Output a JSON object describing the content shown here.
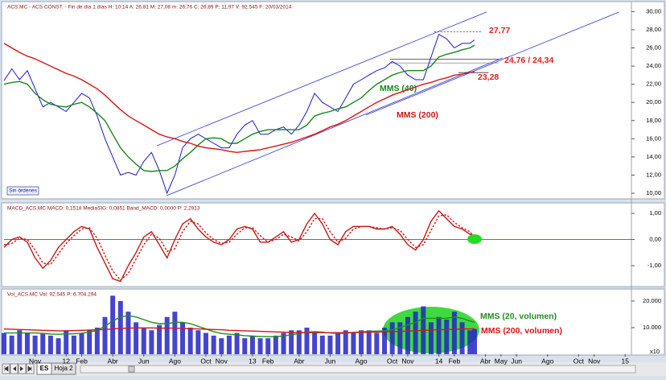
{
  "chart_data": [
    {
      "type": "line",
      "title": "ACS.MC - ACS CONST. - Fin de día 1 días H: 10:14 A: 26,81 M: 27,08 m: 26,76 C: 26,89 P: 11,97 V: 92.545 F: 20/03/2014",
      "badge": "Sin órdenes",
      "xlim": [
        -2,
        38.4
      ],
      "ylim": [
        9.56,
        30.83
      ],
      "yticks": [
        {
          "value": 10,
          "label": "10,00"
        },
        {
          "value": 12,
          "label": "12,00"
        },
        {
          "value": 14,
          "label": "14,00"
        },
        {
          "value": 16,
          "label": "16,00"
        },
        {
          "value": 18,
          "label": "18,00"
        },
        {
          "value": 20,
          "label": "20,00"
        },
        {
          "value": 22,
          "label": "22,00"
        },
        {
          "value": 24,
          "label": "24,00"
        },
        {
          "value": 26,
          "label": "26,00"
        },
        {
          "value": 28,
          "label": "28,00"
        },
        {
          "value": 30,
          "label": "30,00"
        }
      ],
      "x": [
        -2,
        -1.5,
        -1,
        -0.5,
        0,
        0.5,
        1,
        1.5,
        2,
        2.5,
        3,
        3.5,
        4,
        4.5,
        5,
        5.5,
        6,
        6.5,
        7,
        7.5,
        8,
        8.5,
        9,
        9.5,
        10,
        10.5,
        11,
        11.5,
        12,
        12.5,
        13,
        13.5,
        14,
        14.5,
        15,
        15.5,
        16,
        16.5,
        17,
        17.5,
        18,
        18.5,
        19,
        19.5,
        20,
        20.5,
        21,
        21.5,
        22,
        22.5,
        23,
        23.5,
        24,
        24.5,
        25,
        25.5,
        26,
        26.5,
        27,
        27.5,
        28,
        28.3
      ],
      "series": [
        {
          "color": "#1a1ac8",
          "values": [
            22.4,
            23.7,
            22.5,
            23.5,
            21.5,
            19.5,
            20,
            19.5,
            19,
            20,
            21,
            20.5,
            18.5,
            16,
            14,
            12,
            12.3,
            12,
            13.5,
            14.5,
            12.5,
            10,
            12,
            15,
            16,
            16.5,
            16,
            15.5,
            15,
            15,
            16.5,
            17.5,
            18,
            16.5,
            16.5,
            17,
            17.3,
            16.5,
            17.5,
            19,
            21,
            20,
            19.5,
            19,
            20.5,
            22,
            22.5,
            23,
            23.5,
            23.8,
            24.5,
            24,
            23,
            22.5,
            22.5,
            25,
            27.5,
            27,
            26,
            26.5,
            26.5,
            26.89
          ]
        },
        {
          "name": "MMS (40)",
          "color": "#17861a",
          "values": [
            22,
            22.2,
            22.3,
            22,
            21,
            20.3,
            19.8,
            19.6,
            19.5,
            19.8,
            20,
            19.5,
            18.8,
            18,
            16.5,
            15,
            14,
            13.2,
            12.5,
            12.4,
            12.5,
            12.5,
            13,
            13.8,
            14.5,
            15.3,
            16,
            16.1,
            16,
            15.5,
            15.5,
            16,
            16.5,
            16.8,
            17,
            17,
            17,
            17,
            17,
            17.5,
            18.5,
            18.8,
            19,
            19.3,
            19.5,
            20,
            20.5,
            21.3,
            22,
            22.5,
            23,
            23.3,
            23.5,
            23.5,
            23.5,
            24,
            25,
            25.3,
            25.5,
            25.8,
            26,
            26.3
          ]
        },
        {
          "name": "MMS (200)",
          "color": "#d81414",
          "values": [
            26.5,
            26,
            25.5,
            25.1,
            24.8,
            24.4,
            24,
            23.6,
            23.2,
            22.9,
            22.5,
            22,
            21.5,
            20.8,
            20,
            19.2,
            18.5,
            18,
            17.5,
            17,
            16.5,
            16.2,
            16,
            15.7,
            15.5,
            15.2,
            15,
            14.9,
            14.8,
            14.6,
            14.5,
            14.6,
            14.7,
            14.8,
            15,
            15.2,
            15.4,
            15.6,
            15.9,
            16.2,
            16.5,
            16.9,
            17.3,
            17.6,
            18,
            18.5,
            19,
            19.5,
            20,
            20.4,
            20.8,
            21.1,
            21.4,
            21.7,
            22,
            22.2,
            22.5,
            22.7,
            23,
            23.1,
            23.3,
            23.4
          ]
        }
      ],
      "trendlines": [
        {
          "x": [
            7.84,
            29.07
          ],
          "y": [
            15.23,
            29.95
          ]
        },
        {
          "x": [
            8.46,
            30.1
          ],
          "y": [
            9.73,
            24.9
          ]
        },
        {
          "x": [
            21.3,
            37.6
          ],
          "y": [
            18.6,
            29.95
          ]
        }
      ],
      "levels": [
        {
          "label": "27,77",
          "values": [
            27.77
          ],
          "x": [
            25.7,
            28.8
          ]
        },
        {
          "label": "24,76 / 24,34",
          "values": [
            24.76,
            24.34
          ],
          "x": [
            22.86,
            29.85
          ]
        },
        {
          "label": "23,28",
          "values": [
            23.28
          ],
          "x": [
            27.26,
            29.2
          ]
        }
      ]
    },
    {
      "type": "line",
      "title": "MACD_ACS.MC MACD: 0,1518 MediaSIG: 0,0851 Band_MACD: 0,0000 P: 2,2913",
      "xlim": [
        -2,
        38.4
      ],
      "ylim": [
        -1.77,
        1.31
      ],
      "baseline": 0,
      "yticks": [
        {
          "value": 1,
          "label": "1,00"
        },
        {
          "value": 0,
          "label": "0,00"
        },
        {
          "value": -1,
          "label": "-1,00"
        }
      ],
      "x": [
        -2,
        -1.5,
        -1,
        -0.5,
        0,
        0.5,
        1,
        1.5,
        2,
        2.5,
        3,
        3.5,
        4,
        4.5,
        5,
        5.5,
        6,
        6.5,
        7,
        7.5,
        8,
        8.5,
        9,
        9.5,
        10,
        10.5,
        11,
        11.5,
        12,
        12.5,
        13,
        13.5,
        14,
        14.5,
        15,
        15.5,
        16,
        16.5,
        17,
        17.5,
        18,
        18.5,
        19,
        19.5,
        20,
        20.5,
        21,
        21.5,
        22,
        22.5,
        23,
        23.5,
        24,
        24.5,
        25,
        25.5,
        26,
        26.5,
        27,
        27.5,
        28,
        28.3
      ],
      "series": [
        {
          "color": "#c81818",
          "values": [
            -0.3,
            0.0,
            0.1,
            -0.1,
            -0.7,
            -1.1,
            -0.8,
            -0.3,
            0.0,
            0.3,
            0.5,
            0.4,
            -0.3,
            -0.9,
            -1.5,
            -1.6,
            -1.0,
            -0.5,
            0.1,
            0.3,
            -0.2,
            -0.7,
            0.0,
            0.6,
            0.8,
            0.4,
            0.1,
            -0.1,
            -0.2,
            0.0,
            0.4,
            0.5,
            0.4,
            -0.1,
            -0.1,
            0.1,
            0.3,
            -0.1,
            0.0,
            0.6,
            1.0,
            0.6,
            0.0,
            -0.2,
            0.3,
            0.5,
            0.5,
            0.5,
            0.4,
            0.4,
            0.5,
            0.2,
            -0.2,
            -0.4,
            0.0,
            0.7,
            1.1,
            0.8,
            0.5,
            0.4,
            0.2,
            0.15
          ]
        },
        {
          "color": "#c81818",
          "dash": true,
          "values": [
            -0.2,
            -0.15,
            0.05,
            0.0,
            -0.4,
            -0.9,
            -0.95,
            -0.55,
            -0.15,
            0.15,
            0.4,
            0.45,
            0.05,
            -0.6,
            -1.2,
            -1.55,
            -1.3,
            -0.75,
            -0.2,
            0.2,
            0.05,
            -0.45,
            -0.35,
            0.3,
            0.7,
            0.6,
            0.25,
            0.0,
            -0.15,
            -0.1,
            0.2,
            0.45,
            0.45,
            0.15,
            -0.1,
            0.0,
            0.2,
            0.1,
            -0.05,
            0.3,
            0.8,
            0.8,
            0.3,
            -0.1,
            0.05,
            0.4,
            0.5,
            0.5,
            0.45,
            0.4,
            0.45,
            0.35,
            0.0,
            -0.3,
            -0.2,
            0.35,
            0.9,
            0.95,
            0.65,
            0.45,
            0.3,
            0.09
          ]
        }
      ]
    },
    {
      "type": "bar",
      "title": "Vol_ACS.MC Vol: 92.545 P: 6.704.294",
      "unit_label": "x10",
      "xlim": [
        -2,
        38.4
      ],
      "ylim": [
        0,
        23600
      ],
      "yticks": [
        {
          "value": 10000,
          "label": "10.000"
        },
        {
          "value": 20000,
          "label": "20.000"
        }
      ],
      "xticks": [
        {
          "value": 0,
          "label": "Nov"
        },
        {
          "value": 2,
          "label": "12"
        },
        {
          "value": 3,
          "label": "Feb"
        },
        {
          "value": 5,
          "label": "Abr"
        },
        {
          "value": 7,
          "label": "Jun"
        },
        {
          "value": 9,
          "label": "Ago"
        },
        {
          "value": 11,
          "label": "Oct"
        },
        {
          "value": 12,
          "label": "Nov"
        },
        {
          "value": 14,
          "label": "13"
        },
        {
          "value": 15,
          "label": "Feb"
        },
        {
          "value": 17,
          "label": "Abr"
        },
        {
          "value": 19,
          "label": "Jun"
        },
        {
          "value": 21,
          "label": "Ago"
        },
        {
          "value": 23,
          "label": "Oct"
        },
        {
          "value": 24,
          "label": "Nov"
        },
        {
          "value": 26,
          "label": "14"
        },
        {
          "value": 27,
          "label": "Feb"
        },
        {
          "value": 29,
          "label": "Abr"
        },
        {
          "value": 30,
          "label": "May"
        },
        {
          "value": 31,
          "label": "Jun"
        },
        {
          "value": 33,
          "label": "Ago"
        },
        {
          "value": 35,
          "label": "Oct"
        },
        {
          "value": 36,
          "label": "Nov"
        },
        {
          "value": 38,
          "label": "15"
        }
      ],
      "x": [
        -2,
        -1.5,
        -1,
        -0.5,
        0,
        0.5,
        1,
        1.5,
        2,
        2.5,
        3,
        3.5,
        4,
        4.5,
        5,
        5.5,
        6,
        6.5,
        7,
        7.5,
        8,
        8.5,
        9,
        9.5,
        10,
        10.5,
        11,
        11.5,
        12,
        12.5,
        13,
        13.5,
        14,
        14.5,
        15,
        15.5,
        16,
        16.5,
        17,
        17.5,
        18,
        18.5,
        19,
        19.5,
        20,
        20.5,
        21,
        21.5,
        22,
        22.5,
        23,
        23.5,
        24,
        24.5,
        25,
        25.5,
        26,
        26.5,
        27,
        27.5,
        28,
        28.3
      ],
      "series": [
        {
          "style": "bar",
          "color": "#2323c8",
          "values": [
            8000,
            7000,
            9000,
            8000,
            7000,
            8000,
            7000,
            6000,
            9000,
            7000,
            8000,
            9000,
            10000,
            14000,
            22000,
            20000,
            16000,
            12000,
            10000,
            9000,
            11000,
            14000,
            16000,
            12000,
            10000,
            9000,
            8000,
            7000,
            6000,
            7000,
            8000,
            6000,
            7000,
            6000,
            6000,
            7000,
            8000,
            9000,
            9000,
            10000,
            8000,
            7000,
            7000,
            8000,
            9000,
            8000,
            9000,
            9000,
            8000,
            10000,
            12000,
            12000,
            14000,
            16000,
            18000,
            12000,
            14000,
            13000,
            16000,
            12000,
            9000,
            9500
          ]
        },
        {
          "name": "MMS (20, volumen)",
          "color": "#1e8f1e",
          "values": [
            8000,
            8000,
            8000,
            8000,
            8000,
            7800,
            7600,
            7500,
            7600,
            7700,
            7900,
            8300,
            9000,
            10500,
            12500,
            14000,
            14500,
            14000,
            13000,
            12000,
            11500,
            11500,
            12000,
            12000,
            11500,
            10500,
            9500,
            8500,
            7800,
            7500,
            7300,
            7000,
            6800,
            6700,
            6600,
            6600,
            6900,
            7300,
            7800,
            8300,
            8500,
            8300,
            8000,
            7800,
            7900,
            8200,
            8400,
            8600,
            8700,
            8800,
            9200,
            10000,
            11000,
            12000,
            13500,
            13500,
            13500,
            13500,
            14000,
            13500,
            12500,
            12000
          ]
        },
        {
          "name": "MMS (200, volumen)",
          "color": "#d81414",
          "values": [
            9500,
            9400,
            9300,
            9200,
            9100,
            9000,
            8900,
            8800,
            8800,
            8900,
            9000,
            9100,
            9200,
            9300,
            9500,
            9700,
            9800,
            9900,
            9900,
            9900,
            9800,
            9800,
            9800,
            9700,
            9600,
            9500,
            9400,
            9300,
            9200,
            9000,
            8900,
            8800,
            8700,
            8600,
            8500,
            8400,
            8300,
            8200,
            8200,
            8100,
            8100,
            8100,
            8100,
            8100,
            8100,
            8200,
            8200,
            8300,
            8300,
            8400,
            8500,
            8600,
            8700,
            8800,
            9000,
            9100,
            9200,
            9300,
            9400,
            9500,
            9500,
            9600
          ]
        }
      ]
    }
  ],
  "tabs": [
    "ES",
    "Hoja 2"
  ]
}
